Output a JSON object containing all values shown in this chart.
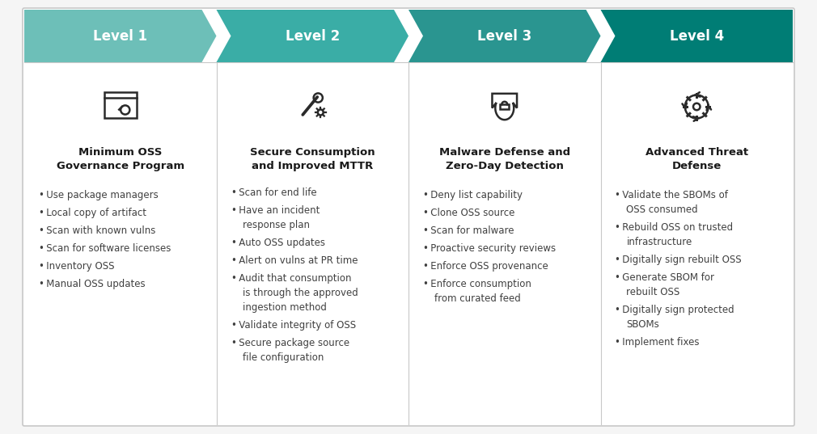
{
  "bg_color": "#f5f5f5",
  "outer_bg": "#ffffff",
  "border_color": "#c8c8c8",
  "header_colors": [
    "#6dbfb8",
    "#3aada6",
    "#2a9590",
    "#007d75"
  ],
  "header_text_color": "#ffffff",
  "body_text_color": "#404040",
  "title_text_color": "#1a1a1a",
  "levels": [
    "Level 1",
    "Level 2",
    "Level 3",
    "Level 4"
  ],
  "titles": [
    "Minimum OSS\nGovernance Program",
    "Secure Consumption\nand Improved MTTR",
    "Malware Defense and\nZero-Day Detection",
    "Advanced Threat\nDefense"
  ],
  "bullets": [
    [
      "Use package managers",
      "Local copy of artifact",
      "Scan with known vulns",
      "Scan for software licenses",
      "Inventory OSS",
      "Manual OSS updates"
    ],
    [
      "Scan for end life",
      "Have an incident\nresponse plan",
      "Auto OSS updates",
      "Alert on vulns at PR time",
      "Audit that consumption\nis through the approved\ningestion method",
      "Validate integrity of OSS",
      "Secure package source\nfile configuration"
    ],
    [
      "Deny list capability",
      "Clone OSS source",
      "Scan for malware",
      "Proactive security reviews",
      "Enforce OSS provenance",
      "Enforce consumption\nfrom curated feed"
    ],
    [
      "Validate the SBOMs of\nOSS consumed",
      "Rebuild OSS on trusted\ninfrastructure",
      "Digitally sign rebuilt OSS",
      "Generate SBOM for\nrebuilt OSS",
      "Digitally sign protected\nSBOMs",
      "Implement fixes"
    ]
  ],
  "fig_width": 10.1,
  "fig_height": 5.37,
  "dpi": 100
}
